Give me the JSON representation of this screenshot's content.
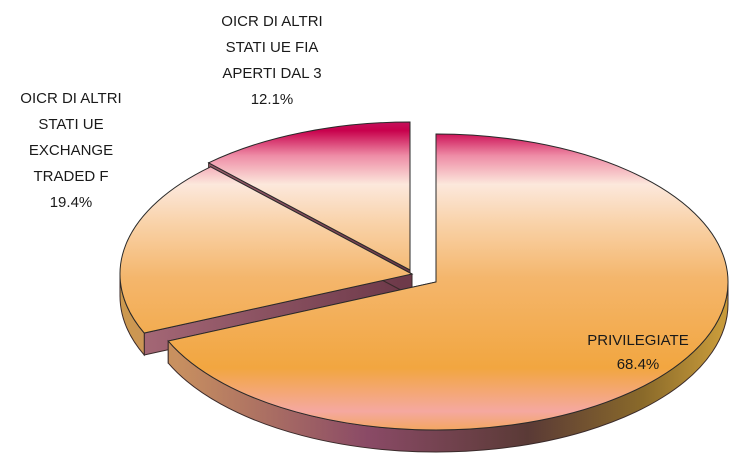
{
  "chart_data": {
    "type": "pie",
    "title": "",
    "slices": [
      {
        "name_lines": [
          "PRIVILEGIATE"
        ],
        "value": 68.4,
        "value_label": "68.4%"
      },
      {
        "name_lines": [
          "OICR DI ALTRI",
          "STATI UE",
          "EXCHANGE",
          "TRADED F"
        ],
        "value": 19.4,
        "value_label": "19.4%"
      },
      {
        "name_lines": [
          "OICR DI ALTRI",
          "STATI UE FIA",
          "APERTI DAL 3"
        ],
        "value": 12.1,
        "value_label": "12.1%"
      }
    ],
    "style": "3d-exploded",
    "legend": "none"
  }
}
